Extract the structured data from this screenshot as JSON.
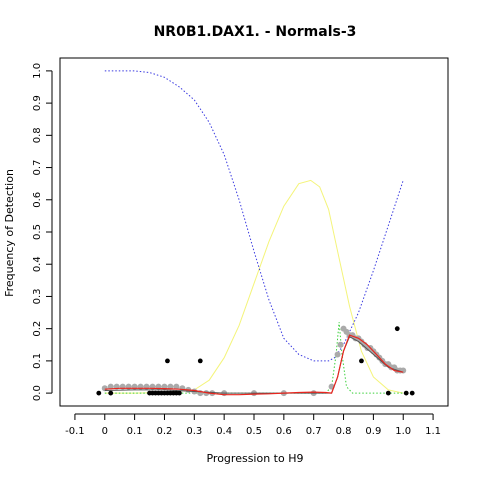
{
  "chart_data": {
    "type": "scatter",
    "title": "NR0B1.DAX1. - Normals-3",
    "xlabel": "Progression to H9",
    "ylabel": "Frequency of Detection",
    "xlim": [
      -0.15,
      1.15
    ],
    "ylim": [
      -0.04,
      1.04
    ],
    "x_ticks": [
      "-0.1",
      "0",
      "0.1",
      "0.2",
      "0.3",
      "0.4",
      "0.5",
      "0.6",
      "0.7",
      "0.8",
      "0.9",
      "1.0",
      "1.1"
    ],
    "y_ticks": [
      "0.0",
      "0.1",
      "0.2",
      "0.3",
      "0.4",
      "0.5",
      "0.6",
      "0.7",
      "0.8",
      "0.9",
      "1.0"
    ],
    "grid": false,
    "colors": {
      "black_points": "#000000",
      "grey_points": "#aaaaaa",
      "red_line": "#e8251e",
      "blue_dotted": "#3a3ae0",
      "yellow_line": "#f4f47a",
      "green_dotted": "#3ad03a",
      "dark_line": "#555555"
    },
    "series": [
      {
        "style": "black-points",
        "x": [
          -0.02,
          0.02,
          0.15,
          0.16,
          0.17,
          0.18,
          0.19,
          0.2,
          0.21,
          0.22,
          0.23,
          0.24,
          0.25,
          0.21,
          0.32,
          0.86,
          0.95,
          0.98,
          1.01,
          1.03
        ],
        "y": [
          0.0,
          0.0,
          0.0,
          0.0,
          0.0,
          0.0,
          0.0,
          0.0,
          0.0,
          0.0,
          0.0,
          0.0,
          0.0,
          0.1,
          0.1,
          0.1,
          0.0,
          0.2,
          0.0,
          0.0
        ]
      },
      {
        "style": "grey-points",
        "x": [
          0.0,
          0.02,
          0.04,
          0.06,
          0.08,
          0.1,
          0.12,
          0.14,
          0.16,
          0.18,
          0.2,
          0.22,
          0.24,
          0.26,
          0.28,
          0.3,
          0.32,
          0.34,
          0.36,
          0.4,
          0.5,
          0.6,
          0.7,
          0.76,
          0.78,
          0.79,
          0.8,
          0.81,
          0.82,
          0.83,
          0.84,
          0.85,
          0.86,
          0.87,
          0.88,
          0.89,
          0.9,
          0.91,
          0.92,
          0.93,
          0.94,
          0.95,
          0.96,
          0.97,
          0.98,
          0.99,
          1.0
        ],
        "y": [
          0.015,
          0.02,
          0.02,
          0.02,
          0.02,
          0.02,
          0.02,
          0.02,
          0.02,
          0.02,
          0.02,
          0.02,
          0.02,
          0.015,
          0.01,
          0.005,
          0.0,
          0.0,
          0.0,
          0.0,
          0.0,
          0.0,
          0.0,
          0.02,
          0.12,
          0.15,
          0.2,
          0.19,
          0.18,
          0.18,
          0.17,
          0.17,
          0.16,
          0.15,
          0.14,
          0.14,
          0.13,
          0.12,
          0.11,
          0.1,
          0.09,
          0.09,
          0.08,
          0.08,
          0.07,
          0.07,
          0.07
        ]
      },
      {
        "style": "red-line",
        "x": [
          0.0,
          0.05,
          0.1,
          0.15,
          0.2,
          0.25,
          0.3,
          0.35,
          0.4,
          0.45,
          0.5,
          0.55,
          0.6,
          0.65,
          0.7,
          0.74,
          0.76,
          0.78,
          0.8,
          0.82,
          0.85,
          0.88,
          0.91,
          0.94,
          0.97,
          1.0
        ],
        "y": [
          0.012,
          0.015,
          0.015,
          0.015,
          0.014,
          0.012,
          0.008,
          0.0,
          -0.005,
          -0.005,
          -0.003,
          -0.002,
          0.0,
          0.002,
          0.003,
          0.002,
          0.0,
          0.05,
          0.13,
          0.18,
          0.17,
          0.15,
          0.12,
          0.09,
          0.07,
          0.065
        ]
      },
      {
        "style": "blue-dotted",
        "x": [
          0.0,
          0.05,
          0.1,
          0.15,
          0.2,
          0.25,
          0.3,
          0.35,
          0.4,
          0.45,
          0.5,
          0.55,
          0.6,
          0.65,
          0.7,
          0.73,
          0.75,
          0.77,
          0.8,
          0.85,
          0.9,
          0.95,
          1.0
        ],
        "y": [
          1.0,
          1.0,
          1.0,
          0.995,
          0.98,
          0.95,
          0.91,
          0.84,
          0.74,
          0.6,
          0.44,
          0.29,
          0.17,
          0.12,
          0.1,
          0.1,
          0.1,
          0.11,
          0.15,
          0.25,
          0.38,
          0.52,
          0.66
        ]
      },
      {
        "style": "yellow-line",
        "x": [
          0.0,
          0.1,
          0.2,
          0.3,
          0.35,
          0.4,
          0.45,
          0.5,
          0.55,
          0.6,
          0.65,
          0.69,
          0.72,
          0.75,
          0.78,
          0.82,
          0.86,
          0.9,
          0.95,
          1.0
        ],
        "y": [
          0.0,
          0.0,
          0.002,
          0.01,
          0.04,
          0.11,
          0.21,
          0.34,
          0.47,
          0.58,
          0.65,
          0.66,
          0.64,
          0.57,
          0.44,
          0.27,
          0.13,
          0.05,
          0.01,
          0.0
        ]
      },
      {
        "style": "green-dotted",
        "x": [
          0.0,
          0.2,
          0.4,
          0.6,
          0.74,
          0.76,
          0.775,
          0.785,
          0.795,
          0.81,
          0.83,
          0.9,
          1.0
        ],
        "y": [
          0.0,
          0.0,
          0.0,
          0.0,
          0.0,
          0.02,
          0.12,
          0.22,
          0.12,
          0.02,
          0.0,
          0.0,
          0.0
        ]
      },
      {
        "style": "dark-line",
        "x": [
          0.0,
          0.1,
          0.2,
          0.3,
          0.4,
          0.5,
          0.6,
          0.7,
          0.76,
          0.78,
          0.8,
          0.82,
          0.85,
          0.9,
          0.95,
          1.0
        ],
        "y": [
          0.008,
          0.01,
          0.01,
          0.005,
          0.0,
          0.0,
          0.0,
          0.0,
          0.0,
          0.05,
          0.13,
          0.175,
          0.16,
          0.12,
          0.08,
          0.065
        ]
      }
    ]
  }
}
